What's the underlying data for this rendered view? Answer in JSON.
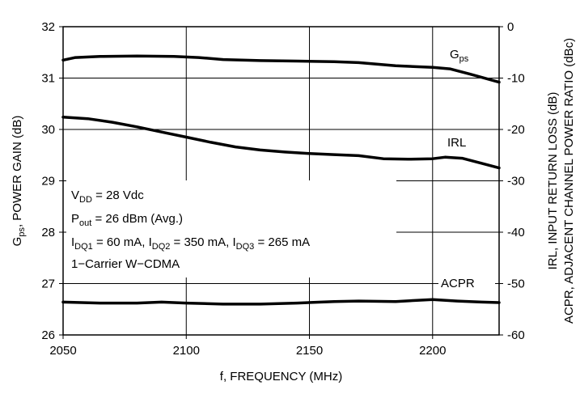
{
  "chart_data": {
    "type": "line",
    "xlabel": "f, FREQUENCY (MHz)",
    "x_ticks": [
      2050,
      2100,
      2150,
      2200
    ],
    "xlim": [
      2050,
      2227
    ],
    "left_axis": {
      "label": {
        "g": "G",
        "sub": "ps",
        "rest": ",  POWER GAIN (dB)"
      },
      "ylim": [
        26,
        32
      ],
      "ticks": [
        "26",
        "27",
        "28",
        "29",
        "30",
        "31",
        "32"
      ]
    },
    "right_axis": {
      "label_line1": "IRL, INPUT RETURN LOSS (dB)",
      "label_line2": "ACPR, ADJACENT CHANNEL POWER RATIO (dBc)",
      "ylim": [
        -60,
        0
      ],
      "ticks": [
        "-60",
        "-50",
        "-40",
        "-30",
        "-20",
        "-10",
        "0"
      ]
    },
    "grid": true,
    "series": [
      {
        "name": "Gps",
        "axis": "left",
        "label": {
          "main": "G",
          "sub": "ps"
        },
        "x": [
          2050,
          2055,
          2065,
          2080,
          2095,
          2105,
          2115,
          2130,
          2145,
          2160,
          2170,
          2185,
          2200,
          2207,
          2215,
          2227
        ],
        "y": [
          31.35,
          31.4,
          31.42,
          31.43,
          31.42,
          31.4,
          31.36,
          31.34,
          31.33,
          31.32,
          31.3,
          31.24,
          31.21,
          31.18,
          31.08,
          30.92
        ]
      },
      {
        "name": "IRL",
        "axis": "right",
        "label": {
          "main": "IRL",
          "sub": ""
        },
        "x": [
          2050,
          2060,
          2070,
          2080,
          2090,
          2100,
          2110,
          2120,
          2130,
          2140,
          2150,
          2160,
          2170,
          2180,
          2190,
          2200,
          2205,
          2212,
          2220,
          2227
        ],
        "y": [
          -17.6,
          -17.9,
          -18.6,
          -19.5,
          -20.5,
          -21.5,
          -22.5,
          -23.4,
          -24.0,
          -24.4,
          -24.7,
          -24.9,
          -25.1,
          -25.7,
          -25.8,
          -25.7,
          -25.4,
          -25.6,
          -26.6,
          -27.5
        ]
      },
      {
        "name": "ACPR",
        "axis": "right",
        "label": {
          "main": "ACPR",
          "sub": ""
        },
        "x": [
          2050,
          2065,
          2080,
          2090,
          2100,
          2115,
          2130,
          2145,
          2160,
          2170,
          2185,
          2200,
          2210,
          2220,
          2227
        ],
        "y": [
          -53.6,
          -53.8,
          -53.8,
          -53.6,
          -53.8,
          -54.0,
          -54.0,
          -53.8,
          -53.5,
          -53.4,
          -53.5,
          -53.1,
          -53.4,
          -53.6,
          -53.7
        ]
      }
    ],
    "annotation": [
      {
        "parts": [
          [
            "V",
            ""
          ],
          [
            "DD",
            "sub"
          ],
          [
            " = 28 Vdc",
            ""
          ]
        ]
      },
      {
        "parts": [
          [
            "P",
            ""
          ],
          [
            "out",
            "sub"
          ],
          [
            " = 26 dBm (Avg.)",
            ""
          ]
        ]
      },
      {
        "parts": [
          [
            "I",
            ""
          ],
          [
            "DQ1",
            "sub"
          ],
          [
            " = 60 mA, I",
            ""
          ],
          [
            "DQ2",
            "sub"
          ],
          [
            " = 350 mA, I",
            ""
          ],
          [
            "DQ3",
            "sub"
          ],
          [
            " = 265 mA",
            ""
          ]
        ]
      },
      {
        "parts": [
          [
            "1−Carrier W−CDMA",
            ""
          ]
        ]
      }
    ]
  }
}
